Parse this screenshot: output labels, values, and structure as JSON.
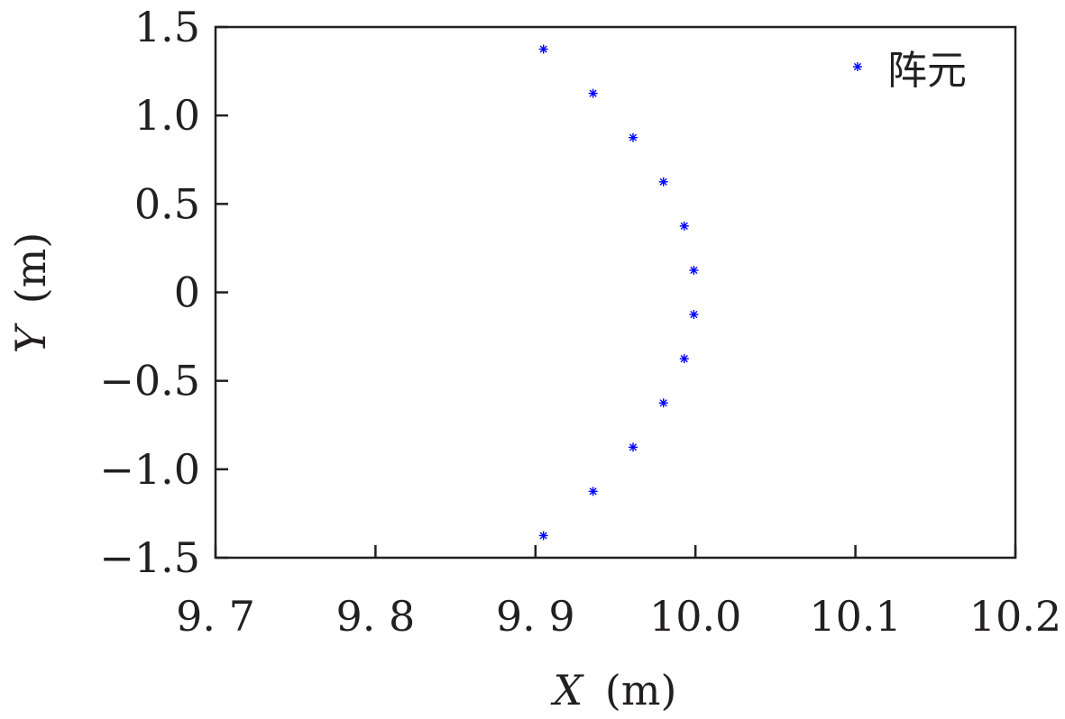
{
  "chart_data": {
    "type": "scatter",
    "xlabel_var": "X",
    "xlabel_unit": "(m)",
    "ylabel_var": "Y",
    "ylabel_unit": "(m)",
    "xlim": [
      9.7,
      10.2
    ],
    "ylim": [
      -1.5,
      1.5
    ],
    "xticks": [
      9.7,
      9.8,
      9.9,
      10.0,
      10.1,
      10.2
    ],
    "xtick_labels": [
      "9. 7",
      "9. 8",
      "9. 9",
      "10.0",
      "10.1",
      "10.2"
    ],
    "yticks": [
      1.5,
      1.0,
      0.5,
      0,
      -0.5,
      -1.0,
      -1.5
    ],
    "ytick_labels": [
      "1.5",
      "1.0",
      "0.5",
      "0",
      "−0.5",
      "−1.0",
      "−1.5"
    ],
    "grid": false,
    "legend_position": "top-right",
    "series": [
      {
        "name": "阵元",
        "marker": "*",
        "color": "#0000ff",
        "x": [
          9.905,
          9.936,
          9.961,
          9.98,
          9.993,
          9.999,
          9.999,
          9.993,
          9.98,
          9.961,
          9.936,
          9.905
        ],
        "y": [
          1.375,
          1.125,
          0.875,
          0.625,
          0.375,
          0.125,
          -0.125,
          -0.375,
          -0.625,
          -0.875,
          -1.125,
          -1.375
        ]
      }
    ]
  }
}
